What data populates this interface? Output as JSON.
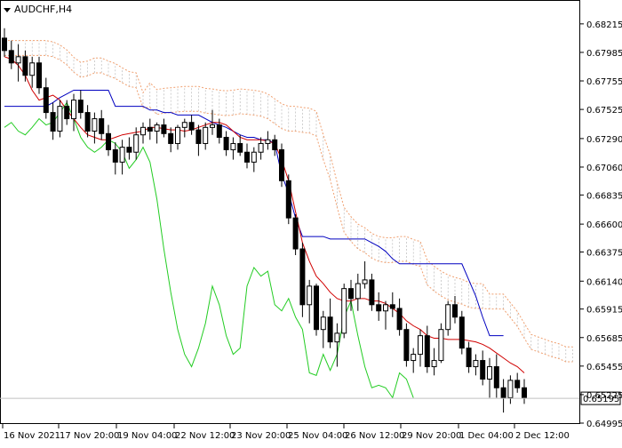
{
  "chart_data": {
    "type": "candlestick",
    "symbol": "AUDCHF,H4",
    "ylim": [
      0.64995,
      0.683
    ],
    "y_ticks": [
      "0.68215",
      "0.67985",
      "0.67755",
      "0.67525",
      "0.67290",
      "0.67060",
      "0.66835",
      "0.66600",
      "0.66375",
      "0.66140",
      "0.65915",
      "0.65685",
      "0.65455",
      "0.65225",
      "0.64995"
    ],
    "x_ticks": [
      "16 Nov 2021",
      "17 Nov 20:00",
      "19 Nov 04:00",
      "22 Nov 12:00",
      "23 Nov 20:00",
      "25 Nov 04:00",
      "26 Nov 12:00",
      "29 Nov 20:00",
      "1 Dec 04:00",
      "2 Dec 12:00"
    ],
    "current_price": "0.65195",
    "colors": {
      "candle": "#000000",
      "tenkan": "#d00000",
      "kijun": "#0000c0",
      "chikou": "#22cc22",
      "cloud": "#f0a070",
      "cloud_fill": "#b0b0b0",
      "grid_line": "#c0c0c0"
    },
    "candles": [
      [
        0.681,
        0.6818,
        0.6795,
        0.68
      ],
      [
        0.68,
        0.6808,
        0.6785,
        0.679
      ],
      [
        0.679,
        0.6805,
        0.6775,
        0.6795
      ],
      [
        0.6795,
        0.68,
        0.6775,
        0.678
      ],
      [
        0.678,
        0.6795,
        0.677,
        0.679
      ],
      [
        0.679,
        0.6795,
        0.6765,
        0.677
      ],
      [
        0.677,
        0.6778,
        0.6745,
        0.675
      ],
      [
        0.675,
        0.6758,
        0.6728,
        0.6735
      ],
      [
        0.6735,
        0.676,
        0.673,
        0.6755
      ],
      [
        0.6755,
        0.676,
        0.674,
        0.6745
      ],
      [
        0.6745,
        0.6765,
        0.6735,
        0.676
      ],
      [
        0.676,
        0.6768,
        0.6745,
        0.675
      ],
      [
        0.675,
        0.6756,
        0.673,
        0.6735
      ],
      [
        0.6735,
        0.675,
        0.6725,
        0.6745
      ],
      [
        0.6745,
        0.6752,
        0.6728,
        0.6733
      ],
      [
        0.6733,
        0.674,
        0.6715,
        0.672
      ],
      [
        0.672,
        0.6726,
        0.67,
        0.671
      ],
      [
        0.671,
        0.6728,
        0.67,
        0.6722
      ],
      [
        0.6722,
        0.673,
        0.6712,
        0.6718
      ],
      [
        0.6718,
        0.6738,
        0.6712,
        0.6732
      ],
      [
        0.6732,
        0.6742,
        0.6725,
        0.6738
      ],
      [
        0.6738,
        0.6745,
        0.6728,
        0.6735
      ],
      [
        0.6735,
        0.6742,
        0.6725,
        0.674
      ],
      [
        0.674,
        0.6745,
        0.673,
        0.6733
      ],
      [
        0.6733,
        0.6738,
        0.6718,
        0.6725
      ],
      [
        0.6725,
        0.674,
        0.672,
        0.6738
      ],
      [
        0.6738,
        0.6745,
        0.673,
        0.6742
      ],
      [
        0.6742,
        0.6748,
        0.6732,
        0.6736
      ],
      [
        0.6736,
        0.674,
        0.6715,
        0.6725
      ],
      [
        0.6725,
        0.6742,
        0.672,
        0.6738
      ],
      [
        0.6738,
        0.6752,
        0.6732,
        0.674
      ],
      [
        0.674,
        0.6745,
        0.6725,
        0.673
      ],
      [
        0.673,
        0.6735,
        0.6715,
        0.672
      ],
      [
        0.672,
        0.673,
        0.6712,
        0.6725
      ],
      [
        0.6725,
        0.6732,
        0.6715,
        0.6718
      ],
      [
        0.6718,
        0.6725,
        0.6705,
        0.671
      ],
      [
        0.671,
        0.6722,
        0.6702,
        0.6718
      ],
      [
        0.6718,
        0.673,
        0.6712,
        0.6725
      ],
      [
        0.6725,
        0.6735,
        0.672,
        0.6728
      ],
      [
        0.6728,
        0.6732,
        0.6715,
        0.672
      ],
      [
        0.672,
        0.6725,
        0.669,
        0.6695
      ],
      [
        0.6695,
        0.67,
        0.666,
        0.6665
      ],
      [
        0.6665,
        0.6668,
        0.6635,
        0.664
      ],
      [
        0.664,
        0.6645,
        0.6585,
        0.6595
      ],
      [
        0.6595,
        0.6615,
        0.658,
        0.661
      ],
      [
        0.661,
        0.6612,
        0.657,
        0.6575
      ],
      [
        0.6575,
        0.659,
        0.656,
        0.6585
      ],
      [
        0.6585,
        0.66,
        0.656,
        0.6565
      ],
      [
        0.6565,
        0.658,
        0.6545,
        0.6572
      ],
      [
        0.6572,
        0.6612,
        0.6568,
        0.6608
      ],
      [
        0.6608,
        0.6615,
        0.659,
        0.66
      ],
      [
        0.66,
        0.662,
        0.659,
        0.6612
      ],
      [
        0.6612,
        0.663,
        0.6608,
        0.6615
      ],
      [
        0.6615,
        0.662,
        0.659,
        0.6595
      ],
      [
        0.6595,
        0.6605,
        0.6582,
        0.659
      ],
      [
        0.659,
        0.6598,
        0.6575,
        0.6595
      ],
      [
        0.6595,
        0.6605,
        0.6585,
        0.6592
      ],
      [
        0.6592,
        0.66,
        0.657,
        0.6575
      ],
      [
        0.6575,
        0.658,
        0.6545,
        0.655
      ],
      [
        0.655,
        0.656,
        0.654,
        0.6555
      ],
      [
        0.6555,
        0.6575,
        0.6545,
        0.657
      ],
      [
        0.657,
        0.6578,
        0.654,
        0.6545
      ],
      [
        0.6545,
        0.656,
        0.6538,
        0.655
      ],
      [
        0.655,
        0.658,
        0.6548,
        0.6575
      ],
      [
        0.6575,
        0.6598,
        0.657,
        0.6595
      ],
      [
        0.6595,
        0.6602,
        0.658,
        0.6585
      ],
      [
        0.6585,
        0.659,
        0.6555,
        0.656
      ],
      [
        0.656,
        0.6565,
        0.654,
        0.6545
      ],
      [
        0.6545,
        0.6555,
        0.6538,
        0.655
      ],
      [
        0.655,
        0.6558,
        0.653,
        0.6535
      ],
      [
        0.6535,
        0.6552,
        0.652,
        0.6545
      ],
      [
        0.6545,
        0.6555,
        0.652,
        0.6528
      ],
      [
        0.6528,
        0.6535,
        0.6508,
        0.652
      ],
      [
        0.652,
        0.6538,
        0.6515,
        0.6534
      ],
      [
        0.6534,
        0.654,
        0.6524,
        0.6528
      ],
      [
        0.6528,
        0.6535,
        0.6515,
        0.652
      ]
    ],
    "tenkan": [
      0.6795,
      0.6793,
      0.6788,
      0.678,
      0.6768,
      0.676,
      0.6762,
      0.6764,
      0.676,
      0.6752,
      0.6745,
      0.6738,
      0.6732,
      0.673,
      0.6728,
      0.6728,
      0.673,
      0.6732,
      0.6733,
      0.6734,
      0.6735,
      0.6738,
      0.6738,
      0.6737,
      0.6736,
      0.6736,
      0.6735,
      0.6736,
      0.6738,
      0.674,
      0.6742,
      0.6742,
      0.674,
      0.6735,
      0.673,
      0.6728,
      0.6728,
      0.6728,
      0.6727,
      0.6725,
      0.6712,
      0.6695,
      0.667,
      0.6645,
      0.663,
      0.6618,
      0.6612,
      0.6605,
      0.66,
      0.6598,
      0.6598,
      0.66,
      0.66,
      0.6598,
      0.6598,
      0.6596,
      0.6592,
      0.6588,
      0.6582,
      0.6578,
      0.6575,
      0.657,
      0.6568,
      0.6568,
      0.6567,
      0.6567,
      0.6567,
      0.6566,
      0.6565,
      0.6563,
      0.656,
      0.6556,
      0.6552,
      0.6548,
      0.6545,
      0.654
    ],
    "kijun": [
      0.6755,
      0.6755,
      0.6755,
      0.6755,
      0.6755,
      0.6755,
      0.6755,
      0.6758,
      0.6762,
      0.6765,
      0.6768,
      0.6768,
      0.6768,
      0.6768,
      0.6768,
      0.6768,
      0.6755,
      0.6755,
      0.6755,
      0.6755,
      0.6755,
      0.6752,
      0.6752,
      0.675,
      0.675,
      0.6748,
      0.6748,
      0.6748,
      0.6748,
      0.6745,
      0.6742,
      0.674,
      0.6738,
      0.6735,
      0.6732,
      0.673,
      0.673,
      0.6728,
      0.6728,
      0.6725,
      0.67,
      0.6685,
      0.6665,
      0.665,
      0.665,
      0.665,
      0.665,
      0.6648,
      0.6648,
      0.6648,
      0.6648,
      0.6648,
      0.6648,
      0.6645,
      0.6642,
      0.6638,
      0.6632,
      0.6628,
      0.6628,
      0.6628,
      0.6628,
      0.6628,
      0.6628,
      0.6628,
      0.6628,
      0.6628,
      0.6628,
      0.6615,
      0.6602,
      0.6585,
      0.657,
      0.657,
      0.657
    ],
    "chikou": [
      0.6738,
      0.6742,
      0.6735,
      0.6732,
      0.6738,
      0.6745,
      0.674,
      0.6742,
      0.675,
      0.6758,
      0.6745,
      0.673,
      0.6722,
      0.6718,
      0.6722,
      0.6728,
      0.6725,
      0.6718,
      0.6705,
      0.6712,
      0.6722,
      0.671,
      0.668,
      0.664,
      0.6605,
      0.6575,
      0.6555,
      0.6545,
      0.656,
      0.658,
      0.661,
      0.6595,
      0.657,
      0.6555,
      0.656,
      0.661,
      0.6625,
      0.6618,
      0.6622,
      0.6595,
      0.659,
      0.66,
      0.6585,
      0.6575,
      0.654,
      0.6538,
      0.6555,
      0.6542,
      0.6555,
      0.6585,
      0.6598,
      0.657,
      0.6545,
      0.6528,
      0.653,
      0.6528,
      0.652,
      0.654,
      0.6535,
      0.652
    ]
  }
}
